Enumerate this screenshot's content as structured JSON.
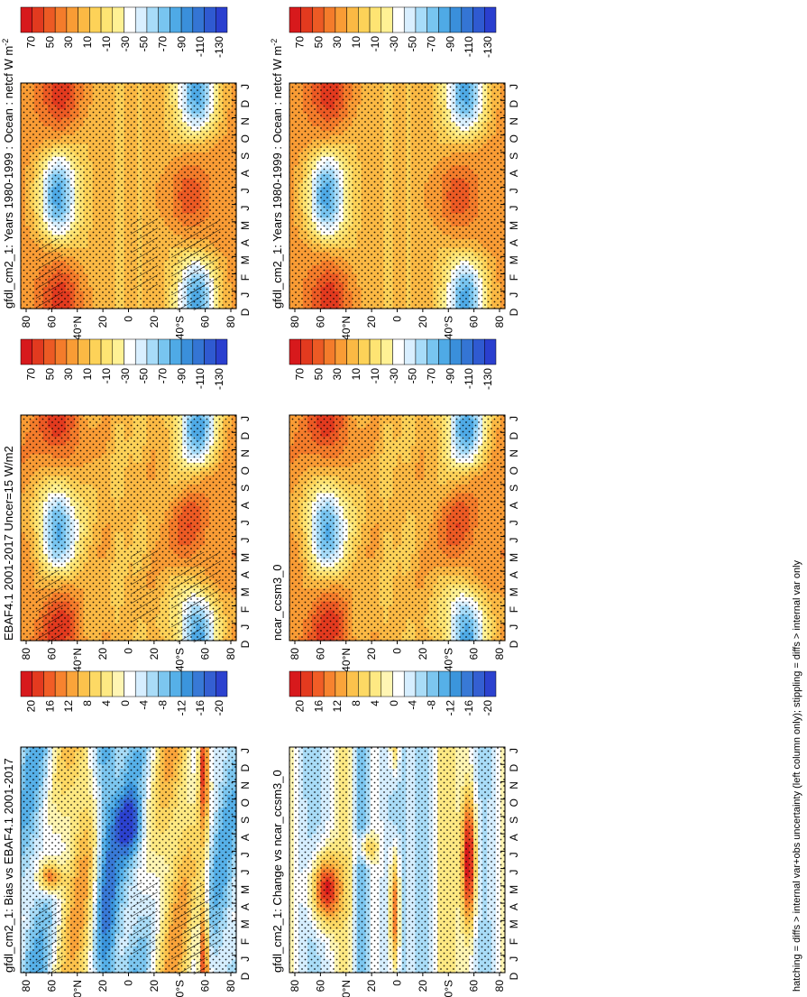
{
  "footer": "hatching = diffs > internal var+obs uncertainty (left column only); stippling = diffs > internal var only",
  "colors": {
    "abs": [
      "#d7191c",
      "#e23a1f",
      "#ec5a24",
      "#f47c2b",
      "#f99c35",
      "#fbb944",
      "#fdd258",
      "#fee473",
      "#fff194",
      "#ffffff",
      "#d9efff",
      "#a7dcf9",
      "#78c5f0",
      "#4faae6",
      "#3a8fdb",
      "#3475d4",
      "#2f5ad1",
      "#2a3fcf"
    ],
    "diff": [
      "#d7191c",
      "#e43a1f",
      "#f15d26",
      "#f7832f",
      "#faa43a",
      "#fcc24c",
      "#fdd964",
      "#fee983",
      "#fff5b3",
      "#ffffff",
      "#d6eeff",
      "#a9dcf7",
      "#7cc6ef",
      "#56b0e8",
      "#3b95dc",
      "#3879d6",
      "#345fd2",
      "#2c42cf"
    ]
  },
  "panels": [
    {
      "id": "p1",
      "title": "gfdl_cm2_1: Years 1980-1999 : Ocean : netcf W m",
      "title_sup": "-2",
      "kind": "abs",
      "col": 0,
      "row": 0
    },
    {
      "id": "p2",
      "title": "EBAF4.1 2001-2017 Uncer=15 W/m2",
      "title_sup": "",
      "kind": "abs",
      "col": 0,
      "row": 1
    },
    {
      "id": "p3",
      "title": "gfdl_cm2_1: Bias vs EBAF4.1 2001-2017",
      "title_sup": "",
      "kind": "diff",
      "col": 0,
      "row": 2
    },
    {
      "id": "p4",
      "title": "gfdl_cm2_1: Years 1980-1999 : Ocean : netcf W m",
      "title_sup": "-2",
      "kind": "abs",
      "col": 1,
      "row": 0
    },
    {
      "id": "p5",
      "title": "ncar_ccsm3_0",
      "title_sup": "",
      "kind": "abs",
      "col": 1,
      "row": 1
    },
    {
      "id": "p6",
      "title": "gfdl_cm2_1: Change vs ncar_ccsm3_0",
      "title_sup": "",
      "kind": "diff",
      "col": 1,
      "row": 2
    }
  ],
  "chart_data": {
    "type": "heatmap",
    "x_ticks": [
      "D",
      "J",
      "F",
      "M",
      "A",
      "M",
      "J",
      "J",
      "A",
      "S",
      "O",
      "N",
      "D",
      "J"
    ],
    "y_ticks": [
      "80",
      "60",
      "40°N",
      "20",
      "0",
      "20",
      "40°S",
      "60",
      "80"
    ],
    "y_range": [
      -90,
      90
    ],
    "abs_colorbar_labels": [
      "70",
      "50",
      "30",
      "10",
      "-10",
      "-30",
      "-50",
      "-70",
      "-90",
      "-110",
      "-130"
    ],
    "diff_colorbar_labels": [
      "20",
      "16",
      "12",
      "8",
      "4",
      "0",
      "-4",
      "-8",
      "-12",
      "-16",
      "-20"
    ],
    "abs_value_range": [
      -140,
      80
    ],
    "diff_value_range": [
      -22,
      22
    ]
  }
}
